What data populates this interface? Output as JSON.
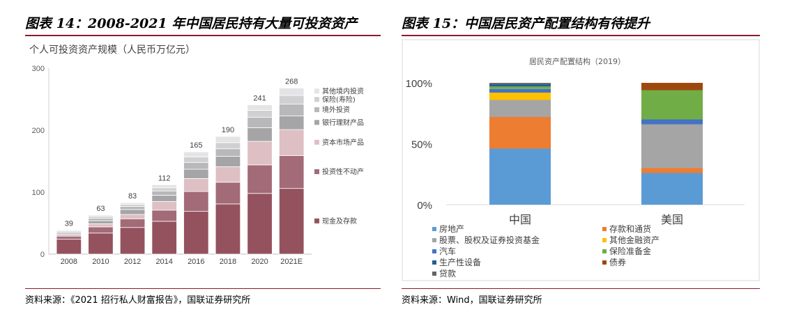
{
  "left": {
    "figure_title": "图表 14：2008-2021 年中国居民持有大量可投资资产",
    "source": "资料来源：《2021 招行私人财富报告》，国联证券研究所",
    "chart_data": {
      "type": "bar",
      "stacked": true,
      "title": "个人可投资资产规模（人民币万亿元）",
      "categories": [
        "2008",
        "2010",
        "2012",
        "2014",
        "2016",
        "2018",
        "2020",
        "2021E"
      ],
      "totals": [
        39,
        63,
        83,
        112,
        165,
        190,
        241,
        268
      ],
      "ylim": [
        0,
        300
      ],
      "yticks": [
        0,
        100,
        200,
        300
      ],
      "grid": false,
      "legend_position": "right",
      "series": [
        {
          "name": "现金及存款",
          "color": "#94525e",
          "values": [
            24,
            34,
            43,
            53,
            69,
            81,
            98,
            106
          ]
        },
        {
          "name": "投资性不动产",
          "color": "#a26b77",
          "values": [
            5,
            10,
            14,
            18,
            32,
            35,
            46,
            53
          ]
        },
        {
          "name": "资本市场产品",
          "color": "#ddbfc4",
          "values": [
            3,
            5,
            7,
            14,
            21,
            25,
            38,
            42
          ]
        },
        {
          "name": "银行理财产品",
          "color": "#a5a5a7",
          "values": [
            2,
            5,
            8,
            10,
            15,
            17,
            22,
            22
          ]
        },
        {
          "name": "境外投资",
          "color": "#b8b8ba",
          "values": [
            2,
            4,
            5,
            7,
            11,
            12,
            17,
            19
          ]
        },
        {
          "name": "保险(寿险)",
          "color": "#d0d0d2",
          "values": [
            1.5,
            3,
            3.5,
            5,
            9,
            10,
            11,
            14
          ]
        },
        {
          "name": "其他境内投资",
          "color": "#e4e4e6",
          "values": [
            1.5,
            2,
            2.5,
            5,
            8,
            10,
            9,
            12
          ]
        }
      ]
    }
  },
  "right": {
    "figure_title": "图表 15：中国居民资产配置结构有待提升",
    "source": "资料来源：Wind，国联证券研究所",
    "chart_data": {
      "type": "bar",
      "stacked": true,
      "percent": true,
      "title": "居民资产配置结构（2019）",
      "categories": [
        "中国",
        "美国"
      ],
      "yticks": [
        "0%",
        "50%",
        "100%"
      ],
      "ylim": [
        0,
        100
      ],
      "grid": false,
      "legend_position": "bottom",
      "series": [
        {
          "name": "房地产",
          "color": "#5b9bd5",
          "values": [
            46,
            26
          ]
        },
        {
          "name": "存款和通货",
          "color": "#ed7d31",
          "values": [
            26,
            4
          ]
        },
        {
          "name": "股票、股权及证券投资基金",
          "color": "#a5a5a5",
          "values": [
            14,
            36
          ]
        },
        {
          "name": "其他金融资产",
          "color": "#ffc000",
          "values": [
            6,
            0
          ]
        },
        {
          "name": "汽车",
          "color": "#4472c4",
          "values": [
            3,
            4
          ]
        },
        {
          "name": "保险准备金",
          "color": "#70ad47",
          "values": [
            2,
            24
          ]
        },
        {
          "name": "生产性设备",
          "color": "#255e91",
          "values": [
            2,
            0
          ]
        },
        {
          "name": "债券",
          "color": "#9e480e",
          "values": [
            0,
            6
          ]
        },
        {
          "name": "贷款",
          "color": "#636363",
          "values": [
            1,
            0
          ]
        }
      ]
    }
  }
}
